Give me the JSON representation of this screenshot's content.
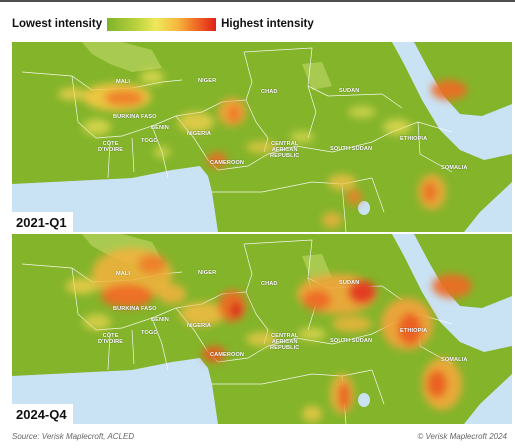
{
  "legend": {
    "low_label": "Lowest intensity",
    "high_label": "Highest intensity",
    "gradient_colors": [
      "#7eb32a",
      "#b6cf3c",
      "#eee85a",
      "#f6b73e",
      "#ef6a23",
      "#e0201b"
    ]
  },
  "colors": {
    "land": "#84b42a",
    "sahara": "#b3d05a",
    "water": "#c9e2f4",
    "border": "#ffffff"
  },
  "country_labels": {
    "mali": "MALI",
    "niger": "NIGER",
    "chad": "CHAD",
    "sudan": "SUDAN",
    "burkina_faso": "BURKINA FASO",
    "benin": "BENIN",
    "nigeria": "NIGERIA",
    "cote_divoire": "CÔTE\nD'IVOIRE",
    "togo": "TOGO",
    "cameroon": "CAMEROON",
    "car": "CENTRAL\nAFRICAN\nREPUBLIC",
    "south_sudan": "SOUTH SUDAN",
    "ethiopia": "ETHIOPIA",
    "somalia": "SOMALIA"
  },
  "panels": [
    {
      "period": "2021-Q1",
      "hotspots": [
        {
          "region": "mali-burkina",
          "intensity": 0.85
        },
        {
          "region": "northern-nigeria",
          "intensity": 0.7
        },
        {
          "region": "lake-chad",
          "intensity": 0.75
        },
        {
          "region": "anglophone-cameroon",
          "intensity": 0.8
        },
        {
          "region": "car-border",
          "intensity": 0.6
        },
        {
          "region": "yemen",
          "intensity": 0.8
        },
        {
          "region": "somalia",
          "intensity": 0.75
        },
        {
          "region": "eastern-drc",
          "intensity": 0.8
        }
      ]
    },
    {
      "period": "2024-Q4",
      "hotspots": [
        {
          "region": "mali-burkina",
          "intensity": 0.9
        },
        {
          "region": "northern-nigeria",
          "intensity": 0.85
        },
        {
          "region": "lake-chad",
          "intensity": 0.85
        },
        {
          "region": "anglophone-cameroon",
          "intensity": 0.85
        },
        {
          "region": "sudan",
          "intensity": 0.95
        },
        {
          "region": "ethiopia",
          "intensity": 0.9
        },
        {
          "region": "yemen",
          "intensity": 0.8
        },
        {
          "region": "somalia",
          "intensity": 0.9
        },
        {
          "region": "eastern-drc",
          "intensity": 0.9
        }
      ]
    }
  ],
  "footer": {
    "source": "Source: Verisk Maplecroft, ACLED",
    "copyright": "© Verisk Maplecroft 2024"
  }
}
